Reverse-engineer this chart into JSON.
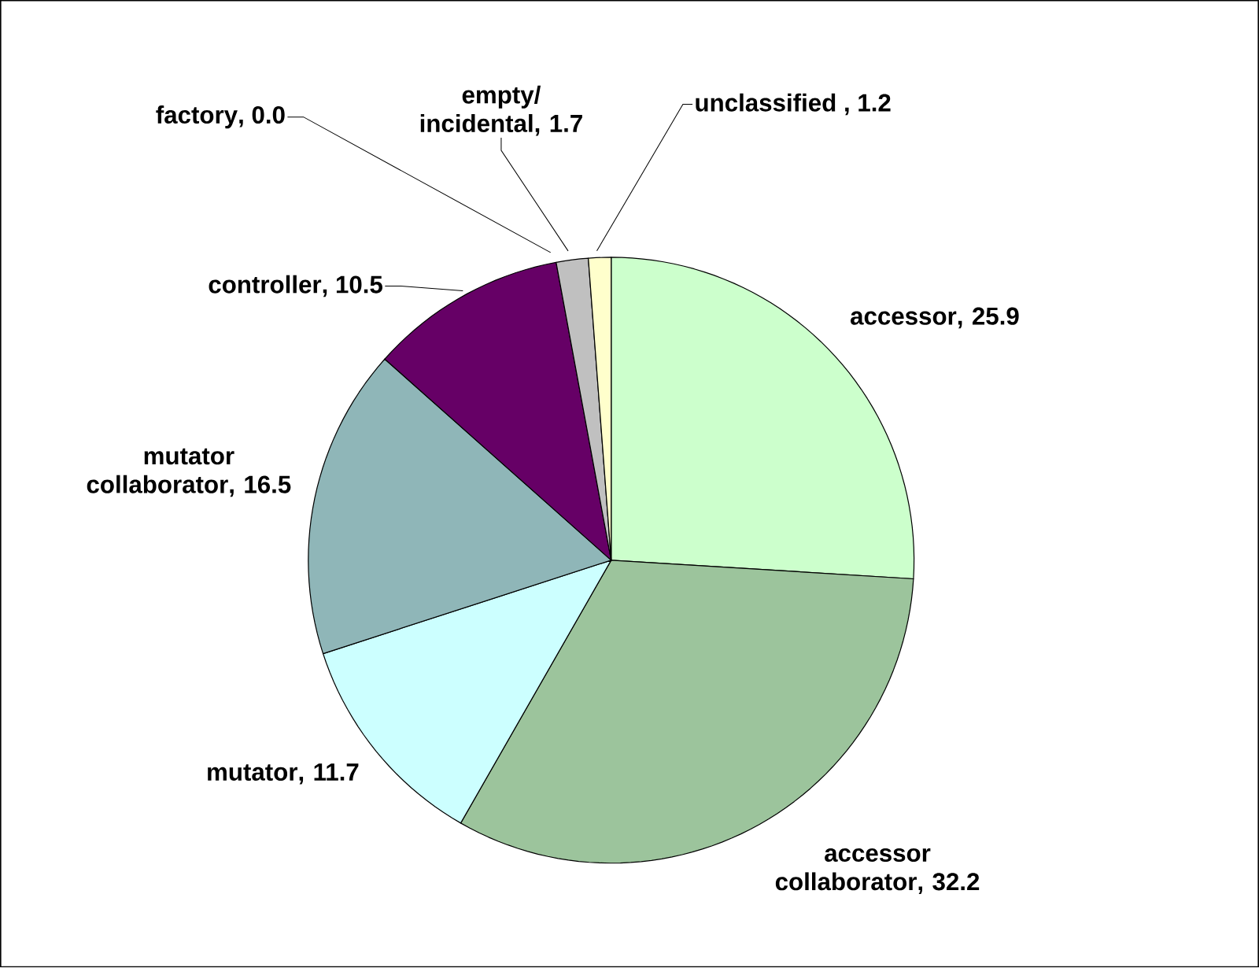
{
  "chart_data": {
    "type": "pie",
    "categories": [
      "accessor",
      "accessor collaborator",
      "mutator",
      "mutator collaborator",
      "controller",
      "factory",
      "empty/ incidental",
      "unclassified "
    ],
    "values": [
      25.9,
      32.2,
      11.7,
      16.5,
      10.5,
      0.0,
      1.7,
      1.2
    ],
    "value_labels": [
      ", 25.9",
      ", 32.2",
      ", 11.7",
      ", 16.5",
      ", 10.5",
      ", 0.0",
      ", 1.7",
      ", 1.2"
    ],
    "colors": [
      "#ccffcc",
      "#9cc49c",
      "#ccffff",
      "#8fb6b8",
      "#660066",
      "#9999ff",
      "#c0c0c0",
      "#ffffcc"
    ],
    "data_labels": true,
    "legend": false
  }
}
